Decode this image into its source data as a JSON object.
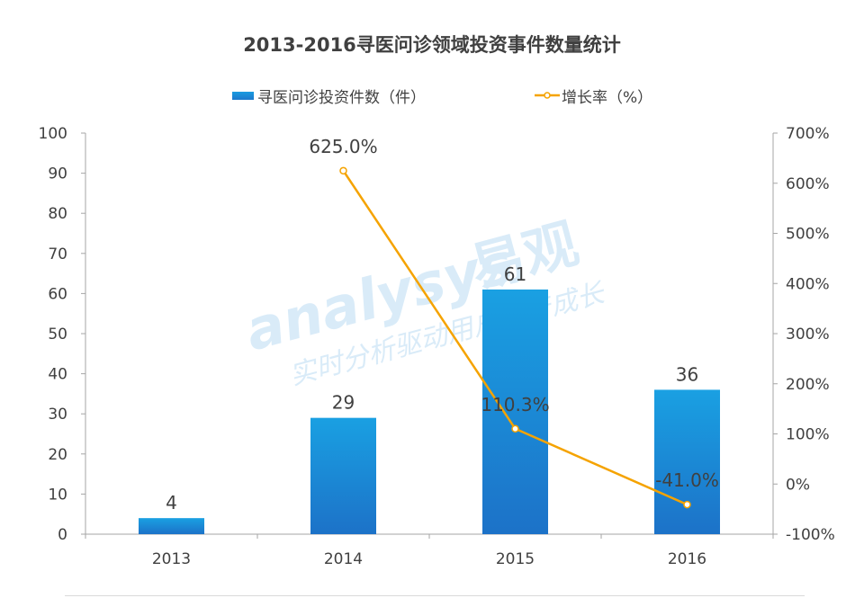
{
  "chart_data": {
    "type": "bar+line",
    "title": "2013-2016寻医问诊领域投资事件数量统计",
    "categories": [
      "2013",
      "2014",
      "2015",
      "2016"
    ],
    "series": [
      {
        "name": "寻医问诊投资件数（件）",
        "type": "bar",
        "axis": "left",
        "values": [
          4,
          29,
          61,
          36
        ],
        "labels": [
          "4",
          "29",
          "61",
          "36"
        ],
        "color": "#1a8ad8"
      },
      {
        "name": "增长率（%）",
        "type": "line",
        "axis": "right",
        "values": [
          null,
          625.0,
          110.3,
          -41.0
        ],
        "labels": [
          "",
          "625.0%",
          "110.3%",
          "-41.0%"
        ],
        "color": "#f5a300"
      }
    ],
    "ylim_left": [
      0,
      100
    ],
    "yticks_left": [
      "0",
      "10",
      "20",
      "30",
      "40",
      "50",
      "60",
      "70",
      "80",
      "90",
      "100"
    ],
    "ylim_right": [
      -100,
      700
    ],
    "yticks_right": [
      "-100%",
      "0%",
      "100%",
      "200%",
      "300%",
      "400%",
      "500%",
      "600%",
      "700%"
    ],
    "grid": false,
    "legend_position": "top-center"
  },
  "watermark": {
    "brand": "analysys",
    "brand_cn": "易观",
    "slogan": "实时分析驱动用户资产成长"
  }
}
